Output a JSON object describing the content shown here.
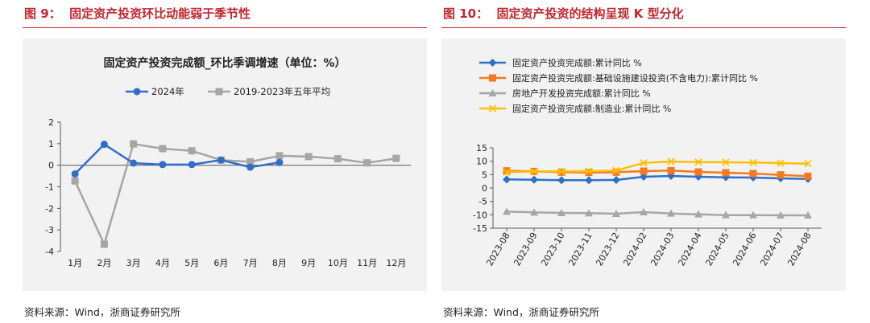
{
  "colors": {
    "accent": "#c0262d",
    "blue": "#2f6fc8",
    "gray": "#a6a6a6",
    "orange": "#f47920",
    "yellow": "#ffc000",
    "axis": "#595959",
    "panel": "#f2f2f2"
  },
  "left": {
    "fig_title": "图 9：  固定资产投资环比动能弱于季节性",
    "source": "资料来源：Wind，浙商证券研究所",
    "chart_data": {
      "type": "line",
      "title": "固定资产投资完成额_环比季调增速（单位：%）",
      "categories": [
        "1月",
        "2月",
        "3月",
        "4月",
        "5月",
        "6月",
        "7月",
        "8月",
        "9月",
        "10月",
        "11月",
        "12月"
      ],
      "ylim": [
        -4,
        2
      ],
      "yticks": [
        "2",
        "1",
        "0",
        "-1",
        "-2",
        "-3",
        "-4"
      ],
      "legend_position": "top-center",
      "series": [
        {
          "name": "2024年",
          "values": [
            -0.4,
            0.97,
            0.1,
            0.03,
            0.03,
            0.24,
            -0.09,
            0.13,
            null,
            null,
            null,
            null
          ]
        },
        {
          "name": "2019-2023年五年平均",
          "values": [
            -0.73,
            -3.66,
            0.99,
            0.77,
            0.67,
            0.24,
            0.16,
            0.44,
            0.4,
            0.3,
            0.11,
            0.32
          ]
        }
      ]
    }
  },
  "right": {
    "fig_title": "图 10：  固定资产投资的结构呈现 K 型分化",
    "source": "资料来源：Wind，浙商证券研究所",
    "chart_data": {
      "type": "line",
      "title": "",
      "categories": [
        "2023-08",
        "2023-09",
        "2023-10",
        "2023-11",
        "2023-12",
        "2024-02",
        "2024-03",
        "2024-04",
        "2024-05",
        "2024-06",
        "2024-07",
        "2024-08"
      ],
      "ylim": [
        -15,
        15
      ],
      "yticks": [
        "15",
        "10",
        "5",
        "0",
        "-5",
        "-10",
        "-15"
      ],
      "legend_position": "top",
      "series": [
        {
          "name": "固定资产投资完成额:累计同比 %",
          "values": [
            3.2,
            3.1,
            2.9,
            2.9,
            3.0,
            4.2,
            4.5,
            4.2,
            4.0,
            3.9,
            3.6,
            3.4
          ]
        },
        {
          "name": "固定资产投资完成额:基础设施建设投资(不含电力):累计同比 %",
          "values": [
            6.4,
            6.2,
            5.9,
            5.8,
            5.9,
            6.3,
            6.5,
            6.0,
            5.7,
            5.4,
            4.9,
            4.4
          ]
        },
        {
          "name": "房地产开发投资完成额:累计同比 %",
          "values": [
            -8.8,
            -9.1,
            -9.3,
            -9.4,
            -9.6,
            -9.0,
            -9.5,
            -9.8,
            -10.1,
            -10.1,
            -10.2,
            -10.2
          ]
        },
        {
          "name": "固定资产投资完成额:制造业:累计同比 %",
          "values": [
            5.9,
            6.2,
            6.2,
            6.3,
            6.5,
            9.4,
            9.9,
            9.7,
            9.6,
            9.5,
            9.3,
            9.1
          ]
        }
      ]
    }
  }
}
